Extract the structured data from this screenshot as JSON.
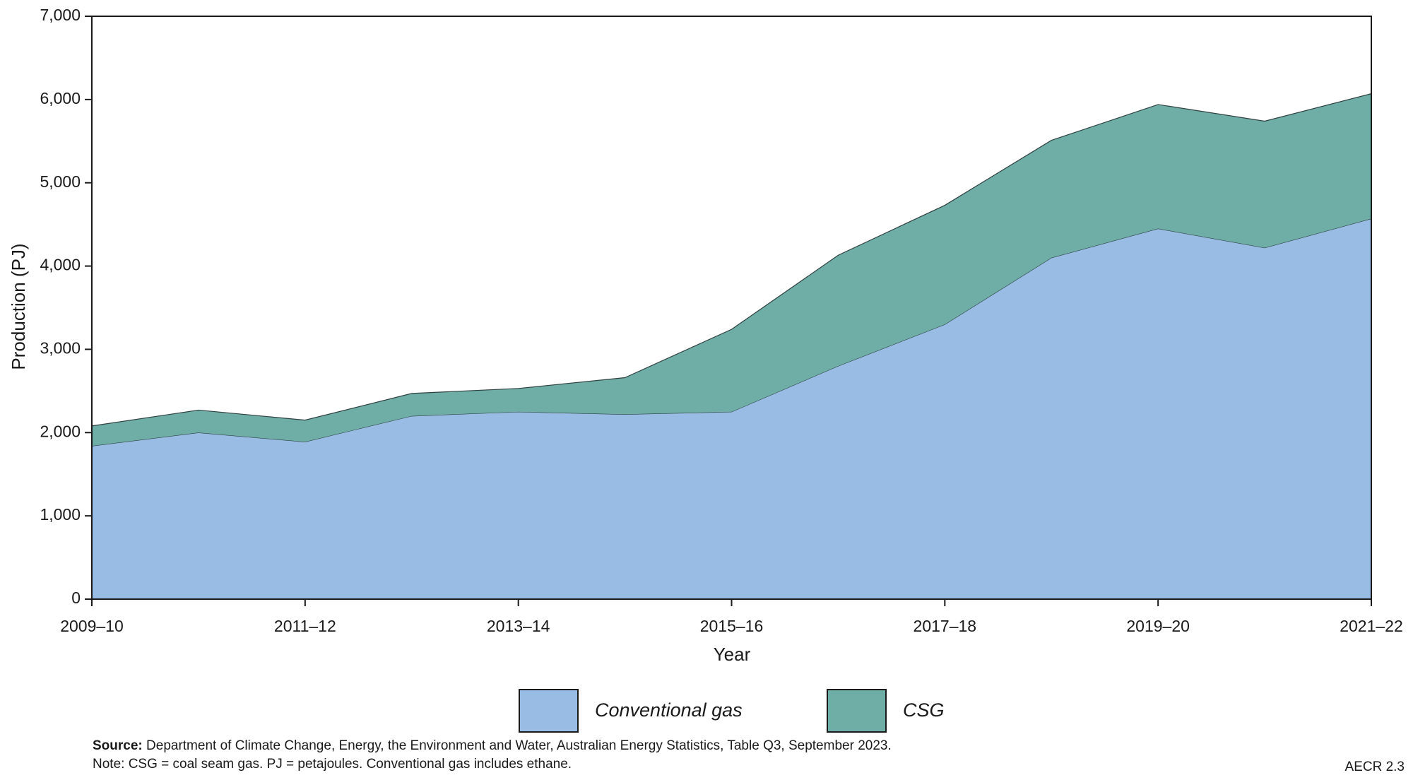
{
  "chart_data": {
    "type": "stacked_area",
    "x_label": "Year",
    "y_label": "Production (PJ)",
    "categories": [
      "2009–10",
      null,
      "2011–12",
      null,
      "2013–14",
      null,
      "2015–16",
      null,
      "2017–18",
      null,
      "2019–20",
      null,
      "2021–22"
    ],
    "series": [
      {
        "name": "Conventional gas",
        "color": "#98bce3",
        "values": [
          1840,
          2000,
          1890,
          2200,
          2250,
          2220,
          2250,
          2800,
          3300,
          4100,
          4450,
          4220,
          4570
        ]
      },
      {
        "name": "CSG",
        "color": "#6eaea7",
        "values": [
          240,
          270,
          260,
          270,
          280,
          440,
          990,
          1330,
          1430,
          1410,
          1490,
          1520,
          1500
        ]
      }
    ],
    "ylim": [
      0,
      7000
    ],
    "yticks": [
      0,
      {
        "value": 1000,
        "label": "1,000"
      },
      {
        "value": 2000,
        "label": "2,000"
      },
      {
        "value": 3000,
        "label": "3,000"
      },
      {
        "value": 4000,
        "label": "4,000"
      },
      {
        "value": 5000,
        "label": "5,000"
      },
      {
        "value": 6000,
        "label": "6,000"
      },
      {
        "value": 7000,
        "label": "7,000"
      }
    ],
    "grid": false,
    "legend": "bottom",
    "source_label": "Source:",
    "source": "Department of Climate Change, Energy, the Environment and Water, Australian Energy Statistics, Table Q3, September 2023.",
    "note": "Note: CSG = coal seam gas. PJ = petajoules. Conventional gas includes ethane.",
    "figure_id": "AECR 2.3"
  }
}
